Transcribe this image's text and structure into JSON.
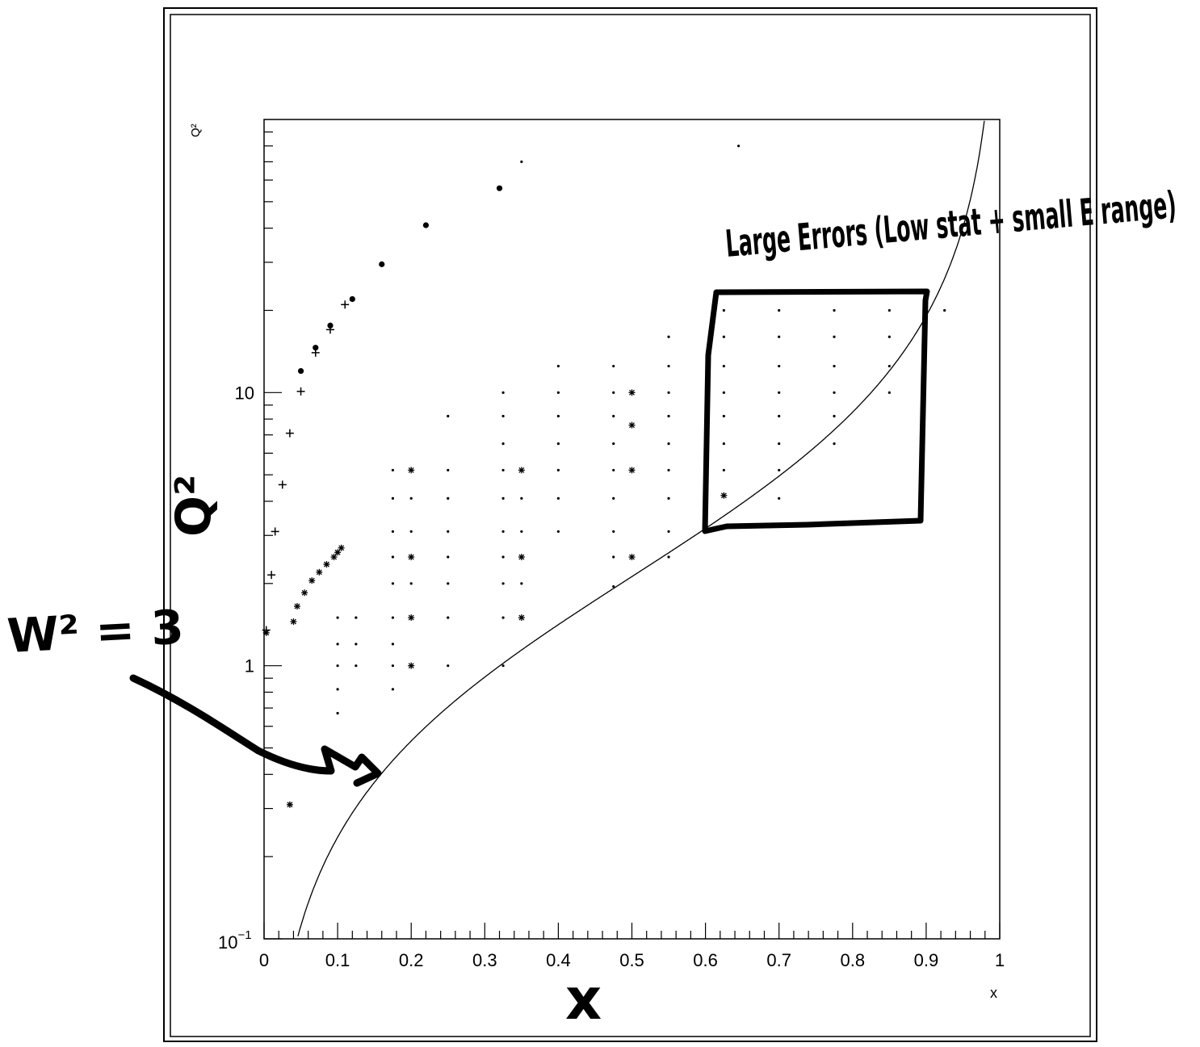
{
  "chart_data": {
    "type": "scatter",
    "title": "",
    "xlabel": "x",
    "ylabel": "Q²",
    "xlim": [
      0,
      1
    ],
    "ylim": [
      0.1,
      100
    ],
    "y_scale": "log",
    "grid": false,
    "x_ticks": [
      "0",
      "0.1",
      "0.2",
      "0.3",
      "0.4",
      "0.5",
      "0.6",
      "0.7",
      "0.8",
      "0.9",
      "1"
    ],
    "y_ticks": [
      {
        "value": 10,
        "label": "10"
      },
      {
        "value": 1,
        "label": "1"
      }
    ],
    "y_tick_bottom": {
      "base": "10",
      "exponent": "−1"
    },
    "series": [
      {
        "marker": "plus",
        "points": [
          [
            0.003,
            1.35
          ],
          [
            0.01,
            2.15
          ],
          [
            0.015,
            3.1
          ],
          [
            0.025,
            4.6
          ],
          [
            0.035,
            7.1
          ],
          [
            0.05,
            10.1
          ],
          [
            0.07,
            14.0
          ],
          [
            0.09,
            17.0
          ],
          [
            0.11,
            21.0
          ]
        ]
      },
      {
        "marker": "circle",
        "points": [
          [
            0.05,
            12.0
          ],
          [
            0.07,
            14.6
          ],
          [
            0.09,
            17.6
          ],
          [
            0.12,
            22.0
          ],
          [
            0.16,
            29.5
          ],
          [
            0.22,
            41.0
          ],
          [
            0.32,
            56.0
          ]
        ]
      },
      {
        "marker": "star",
        "points": [
          [
            0.003,
            1.32
          ],
          [
            0.035,
            0.31
          ],
          [
            0.04,
            1.45
          ],
          [
            0.045,
            1.65
          ],
          [
            0.055,
            1.85
          ],
          [
            0.065,
            2.05
          ],
          [
            0.075,
            2.2
          ],
          [
            0.085,
            2.35
          ],
          [
            0.095,
            2.5
          ],
          [
            0.1,
            2.6
          ],
          [
            0.105,
            2.7
          ],
          [
            0.2,
            5.2
          ],
          [
            0.2,
            2.5
          ],
          [
            0.2,
            1.5
          ],
          [
            0.2,
            1.0
          ],
          [
            0.35,
            5.2
          ],
          [
            0.35,
            2.5
          ],
          [
            0.35,
            1.5
          ],
          [
            0.5,
            10.0
          ],
          [
            0.5,
            7.6
          ],
          [
            0.5,
            5.2
          ],
          [
            0.5,
            2.5
          ],
          [
            0.625,
            4.2
          ]
        ]
      },
      {
        "marker": "dot",
        "points": [
          [
            0.1,
            1.0
          ],
          [
            0.1,
            1.2
          ],
          [
            0.1,
            1.5
          ],
          [
            0.1,
            0.82
          ],
          [
            0.1,
            0.67
          ],
          [
            0.125,
            1.0
          ],
          [
            0.125,
            1.2
          ],
          [
            0.125,
            1.5
          ],
          [
            0.175,
            0.82
          ],
          [
            0.175,
            1.0
          ],
          [
            0.175,
            1.2
          ],
          [
            0.175,
            1.5
          ],
          [
            0.175,
            2.0
          ],
          [
            0.175,
            2.5
          ],
          [
            0.175,
            3.1
          ],
          [
            0.175,
            4.1
          ],
          [
            0.175,
            5.2
          ],
          [
            0.2,
            2.0
          ],
          [
            0.2,
            3.1
          ],
          [
            0.2,
            4.1
          ],
          [
            0.25,
            1.0
          ],
          [
            0.25,
            1.5
          ],
          [
            0.25,
            2.0
          ],
          [
            0.25,
            2.5
          ],
          [
            0.25,
            3.1
          ],
          [
            0.25,
            4.1
          ],
          [
            0.25,
            5.2
          ],
          [
            0.25,
            8.2
          ],
          [
            0.325,
            1.0
          ],
          [
            0.325,
            1.5
          ],
          [
            0.325,
            2.0
          ],
          [
            0.325,
            2.5
          ],
          [
            0.325,
            3.1
          ],
          [
            0.325,
            4.1
          ],
          [
            0.325,
            5.2
          ],
          [
            0.325,
            6.5
          ],
          [
            0.325,
            8.2
          ],
          [
            0.325,
            10.0
          ],
          [
            0.35,
            2.0
          ],
          [
            0.35,
            3.1
          ],
          [
            0.35,
            4.1
          ],
          [
            0.4,
            3.1
          ],
          [
            0.4,
            4.1
          ],
          [
            0.4,
            5.2
          ],
          [
            0.4,
            6.5
          ],
          [
            0.4,
            8.2
          ],
          [
            0.4,
            10.0
          ],
          [
            0.4,
            12.5
          ],
          [
            0.475,
            1.95
          ],
          [
            0.475,
            2.5
          ],
          [
            0.475,
            3.1
          ],
          [
            0.475,
            4.1
          ],
          [
            0.475,
            5.2
          ],
          [
            0.475,
            6.5
          ],
          [
            0.475,
            8.2
          ],
          [
            0.475,
            10.0
          ],
          [
            0.475,
            12.5
          ],
          [
            0.55,
            2.5
          ],
          [
            0.55,
            3.1
          ],
          [
            0.55,
            4.1
          ],
          [
            0.55,
            5.2
          ],
          [
            0.55,
            6.5
          ],
          [
            0.55,
            8.2
          ],
          [
            0.55,
            10.0
          ],
          [
            0.55,
            12.5
          ],
          [
            0.55,
            16.0
          ],
          [
            0.625,
            5.2
          ],
          [
            0.625,
            6.5
          ],
          [
            0.625,
            8.2
          ],
          [
            0.625,
            10.0
          ],
          [
            0.625,
            12.5
          ],
          [
            0.625,
            16.0
          ],
          [
            0.625,
            20.0
          ],
          [
            0.7,
            4.1
          ],
          [
            0.7,
            5.2
          ],
          [
            0.7,
            6.5
          ],
          [
            0.7,
            8.2
          ],
          [
            0.7,
            10.0
          ],
          [
            0.7,
            12.5
          ],
          [
            0.7,
            16.0
          ],
          [
            0.7,
            20.0
          ],
          [
            0.775,
            6.5
          ],
          [
            0.775,
            8.2
          ],
          [
            0.775,
            10.0
          ],
          [
            0.775,
            12.5
          ],
          [
            0.775,
            16.0
          ],
          [
            0.775,
            20.0
          ],
          [
            0.85,
            10.0
          ],
          [
            0.85,
            12.5
          ],
          [
            0.85,
            16.0
          ],
          [
            0.85,
            20.0
          ],
          [
            0.925,
            20.0
          ],
          [
            0.35,
            70.0
          ],
          [
            0.645,
            80.0
          ]
        ]
      }
    ],
    "curve": {
      "label": "W² = 3",
      "formula": "Q2 = (W2 - 0.88) * x / (1 - x)",
      "W2": 3
    },
    "annotations": [
      {
        "text": "W² = 3"
      },
      {
        "text": "Large Errors (Low stat + small E range)"
      },
      {
        "text": "Q²"
      },
      {
        "text": "x"
      }
    ],
    "highlight_box": {
      "x": [
        0.6,
        0.9
      ],
      "y": [
        3.2,
        22.0
      ]
    }
  }
}
